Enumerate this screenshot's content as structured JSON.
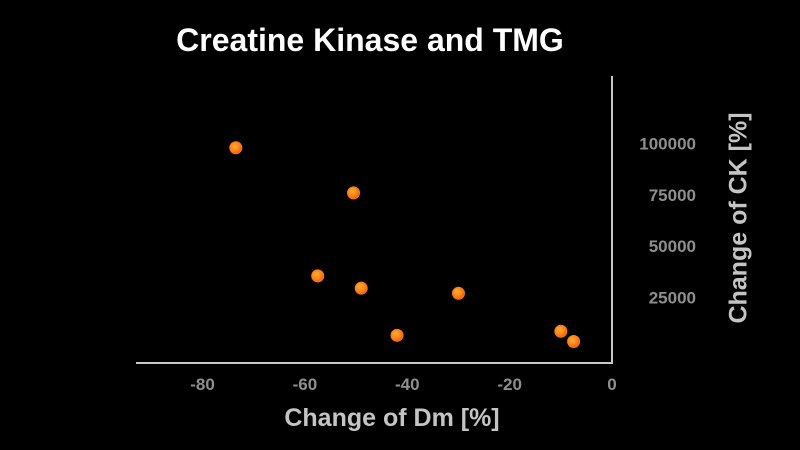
{
  "chart_data": {
    "type": "scatter",
    "title": "Creatine Kinase and TMG",
    "xlabel": "Change of Dm [%]",
    "ylabel": "Change of CK [%]",
    "xlim": [
      -93,
      0
    ],
    "ylim": [
      -7000,
      133000
    ],
    "x_ticks": [
      -80,
      -60,
      -40,
      -20,
      0
    ],
    "y_ticks": [
      25000,
      50000,
      75000,
      100000
    ],
    "x_tick_labels": [
      "-80",
      "-60",
      "-40",
      "-20",
      "0"
    ],
    "y_tick_labels": [
      "25000",
      "50000",
      "75000",
      "100000"
    ],
    "y_axis_position": "right",
    "grid": false,
    "legend": "none",
    "marker_color": "#ff7a12",
    "points": [
      {
        "x": -73.5,
        "y": 98000
      },
      {
        "x": -50.5,
        "y": 76000
      },
      {
        "x": -57.5,
        "y": 35500
      },
      {
        "x": -49,
        "y": 29500
      },
      {
        "x": -30,
        "y": 27000
      },
      {
        "x": -42,
        "y": 6500
      },
      {
        "x": -10,
        "y": 8500
      },
      {
        "x": -7.5,
        "y": 3500
      }
    ]
  }
}
